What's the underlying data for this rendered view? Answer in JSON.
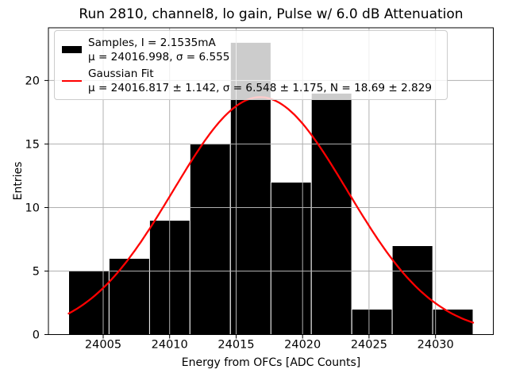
{
  "chart_data": {
    "type": "bar",
    "variant": "histogram",
    "title": "Run 2810, channel8, lo gain, Pulse w/ 6.0 dB Attenuation",
    "xlabel": "Energy from OFCs [ADC Counts]",
    "ylabel": "Entries",
    "bin_edges": [
      24002.4,
      24005.44,
      24008.49,
      24011.53,
      24014.57,
      24017.62,
      24020.66,
      24023.7,
      24026.74,
      24029.79,
      24032.83
    ],
    "counts": [
      5,
      6,
      9,
      15,
      23,
      12,
      19,
      2,
      7,
      2
    ],
    "total_entries": 100,
    "xticks": [
      24005,
      24010,
      24015,
      24020,
      24025,
      24030
    ],
    "yticks": [
      0,
      5,
      10,
      15,
      20
    ],
    "xlim": [
      24000.88,
      24034.35
    ],
    "ylim": [
      0,
      24.15
    ],
    "grid": true,
    "grid_color": "#b0b0b0",
    "bar_color": "#000000",
    "bar_edge_color": "#ffffff",
    "samples_stats": {
      "mu": 24016.998,
      "sigma": 6.555,
      "current_mA": 2.1535
    },
    "fit": {
      "type": "gaussian",
      "N": 18.69,
      "N_err": 2.829,
      "mu": 24016.817,
      "mu_err": 1.142,
      "sigma": 6.548,
      "sigma_err": 1.175,
      "color": "#ff0000"
    },
    "legend_position": "upper left",
    "legend": {
      "entries": [
        {
          "swatch": "black-filled-rectangle",
          "label": "Samples, I = 2.1535mA",
          "sublabel": "μ = 24016.998, σ = 6.555"
        },
        {
          "swatch": "red-line",
          "label": "Gaussian Fit",
          "sublabel": "μ = 24016.817 ± 1.142, σ = 6.548 ± 1.175, N = 18.69 ± 2.829"
        }
      ]
    }
  }
}
